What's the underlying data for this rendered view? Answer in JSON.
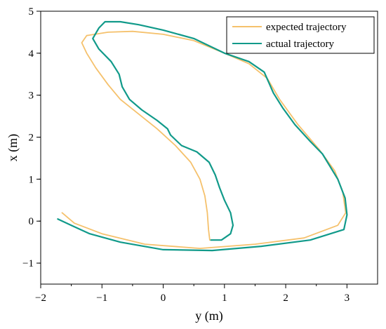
{
  "chart_data": {
    "type": "line",
    "title": "",
    "xlabel": "y (m)",
    "ylabel": "x (m)",
    "xlim": [
      -2,
      3.5
    ],
    "ylim": [
      -1.5,
      5
    ],
    "x_ticks": [
      -2,
      -1,
      0,
      1,
      2,
      3
    ],
    "x_tick_labels": [
      "−2",
      "−1",
      "0",
      "1",
      "2",
      "3"
    ],
    "y_ticks": [
      -1,
      0,
      1,
      2,
      3,
      4,
      5
    ],
    "y_tick_labels": [
      "−1",
      "0",
      "1",
      "2",
      "3",
      "4",
      "5"
    ],
    "grid": false,
    "legend_position": "top-right",
    "series": [
      {
        "name": "expected trajectory",
        "color": "#f5c16c",
        "points": [
          [
            0.76,
            -0.45
          ],
          [
            0.74,
            -0.2
          ],
          [
            0.72,
            0.2
          ],
          [
            0.68,
            0.6
          ],
          [
            0.6,
            1.0
          ],
          [
            0.45,
            1.4
          ],
          [
            0.2,
            1.8
          ],
          [
            -0.1,
            2.2
          ],
          [
            -0.4,
            2.55
          ],
          [
            -0.7,
            2.9
          ],
          [
            -0.9,
            3.25
          ],
          [
            -1.1,
            3.65
          ],
          [
            -1.25,
            4.0
          ],
          [
            -1.33,
            4.25
          ],
          [
            -1.25,
            4.42
          ],
          [
            -0.9,
            4.5
          ],
          [
            -0.5,
            4.52
          ],
          [
            0.0,
            4.45
          ],
          [
            0.5,
            4.3
          ],
          [
            1.0,
            4.0
          ],
          [
            1.4,
            3.75
          ],
          [
            1.7,
            3.4
          ],
          [
            1.9,
            2.9
          ],
          [
            2.2,
            2.3
          ],
          [
            2.55,
            1.7
          ],
          [
            2.8,
            1.2
          ],
          [
            2.93,
            0.7
          ],
          [
            2.98,
            0.2
          ],
          [
            2.85,
            -0.1
          ],
          [
            2.3,
            -0.4
          ],
          [
            1.5,
            -0.55
          ],
          [
            0.6,
            -0.65
          ],
          [
            -0.3,
            -0.55
          ],
          [
            -1.0,
            -0.3
          ],
          [
            -1.45,
            -0.05
          ],
          [
            -1.65,
            0.2
          ]
        ]
      },
      {
        "name": "actual trajectory",
        "color": "#119a8a",
        "points": [
          [
            0.78,
            -0.45
          ],
          [
            0.95,
            -0.45
          ],
          [
            1.1,
            -0.3
          ],
          [
            1.14,
            -0.1
          ],
          [
            1.1,
            0.2
          ],
          [
            1.0,
            0.5
          ],
          [
            0.92,
            0.8
          ],
          [
            0.85,
            1.1
          ],
          [
            0.75,
            1.4
          ],
          [
            0.55,
            1.65
          ],
          [
            0.3,
            1.8
          ],
          [
            0.12,
            2.05
          ],
          [
            0.07,
            2.2
          ],
          [
            -0.1,
            2.4
          ],
          [
            -0.35,
            2.65
          ],
          [
            -0.55,
            2.9
          ],
          [
            -0.67,
            3.2
          ],
          [
            -0.72,
            3.5
          ],
          [
            -0.85,
            3.8
          ],
          [
            -1.05,
            4.1
          ],
          [
            -1.15,
            4.35
          ],
          [
            -1.05,
            4.6
          ],
          [
            -0.95,
            4.75
          ],
          [
            -0.7,
            4.75
          ],
          [
            -0.4,
            4.68
          ],
          [
            0.0,
            4.55
          ],
          [
            0.5,
            4.35
          ],
          [
            1.0,
            4.0
          ],
          [
            1.4,
            3.8
          ],
          [
            1.65,
            3.55
          ],
          [
            1.8,
            3.05
          ],
          [
            1.95,
            2.7
          ],
          [
            2.15,
            2.3
          ],
          [
            2.4,
            1.9
          ],
          [
            2.6,
            1.6
          ],
          [
            2.85,
            1.0
          ],
          [
            2.97,
            0.55
          ],
          [
            3.0,
            0.15
          ],
          [
            2.95,
            -0.2
          ],
          [
            2.4,
            -0.45
          ],
          [
            1.6,
            -0.6
          ],
          [
            0.8,
            -0.7
          ],
          [
            0.0,
            -0.68
          ],
          [
            -0.7,
            -0.5
          ],
          [
            -1.2,
            -0.3
          ],
          [
            -1.5,
            -0.1
          ],
          [
            -1.72,
            0.05
          ]
        ]
      }
    ]
  }
}
